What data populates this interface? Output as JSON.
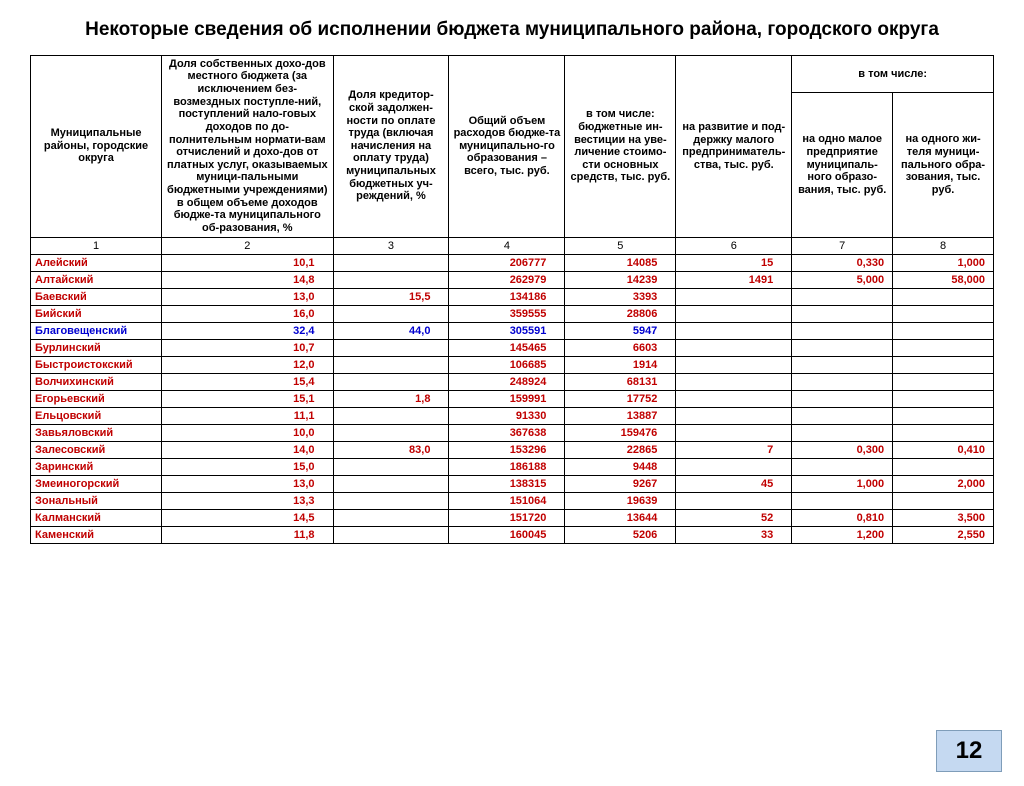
{
  "title": "Некоторые сведения об исполнении бюджета муниципального района, городского округа",
  "page_number": "12",
  "colors": {
    "red": "#c00000",
    "blue": "#0000d0",
    "badge_bg": "#c5d9f1",
    "badge_border": "#7f9db9",
    "border": "#000000",
    "background": "#ffffff"
  },
  "headers": {
    "group_label": "в том числе:",
    "col1": "Муниципальные районы, городские округа",
    "col2": "Доля собственных дохо-дов местного бюджета (за исключением без-возмездных поступле-ний, поступлений нало-говых доходов по до-полнительным нормати-вам отчислений и дохо-дов от платных услуг, оказываемых муници-пальными бюджетными учреждениями) в общем объеме доходов бюдже-та муниципального об-разования, %",
    "col3": "Доля кредитор-ской задолжен-ности по оплате труда (включая начисления на оплату труда) муниципальных бюджетных уч-реждений, %",
    "col4": "Общий объем расходов бюдже-та муниципально-го образования – всего, тыс. руб.",
    "col5": "в том числе: бюджетные ин-вестиции на уве-личение стоимо-сти основных средств, тыс. руб.",
    "col6": "на развитие и под-держку малого предприниматель-ства, тыс. руб.",
    "col7": "на одно малое предприятие муниципаль-ного образо-вания, тыс. руб.",
    "col8": "на одного жи-теля муници-пального обра-зования, тыс. руб."
  },
  "colnums": [
    "1",
    "2",
    "3",
    "4",
    "5",
    "6",
    "7",
    "8"
  ],
  "rows": [
    {
      "name": "Алейский",
      "style": "red",
      "v": [
        "10,1",
        "",
        "206777",
        "14085",
        "15",
        "0,330",
        "1,000"
      ]
    },
    {
      "name": "Алтайский",
      "style": "red",
      "v": [
        "14,8",
        "",
        "262979",
        "14239",
        "1491",
        "5,000",
        "58,000"
      ]
    },
    {
      "name": "Баевский",
      "style": "red",
      "v": [
        "13,0",
        "15,5",
        "134186",
        "3393",
        "",
        "",
        ""
      ]
    },
    {
      "name": "Бийский",
      "style": "red",
      "v": [
        "16,0",
        "",
        "359555",
        "28806",
        "",
        "",
        ""
      ]
    },
    {
      "name": "Благовещенский",
      "style": "blue",
      "v": [
        "32,4",
        "44,0",
        "305591",
        "5947",
        "",
        "",
        ""
      ]
    },
    {
      "name": "Бурлинский",
      "style": "red",
      "v": [
        "10,7",
        "",
        "145465",
        "6603",
        "",
        "",
        ""
      ]
    },
    {
      "name": "Быстроистокский",
      "style": "red",
      "v": [
        "12,0",
        "",
        "106685",
        "1914",
        "",
        "",
        ""
      ]
    },
    {
      "name": "Волчихинский",
      "style": "red",
      "v": [
        "15,4",
        "",
        "248924",
        "68131",
        "",
        "",
        ""
      ]
    },
    {
      "name": "Егорьевский",
      "style": "red",
      "v": [
        "15,1",
        "1,8",
        "159991",
        "17752",
        "",
        "",
        ""
      ]
    },
    {
      "name": "Ельцовский",
      "style": "red",
      "v": [
        "11,1",
        "",
        "91330",
        "13887",
        "",
        "",
        ""
      ]
    },
    {
      "name": "Завьяловский",
      "style": "red",
      "v": [
        "10,0",
        "",
        "367638",
        "159476",
        "",
        "",
        ""
      ]
    },
    {
      "name": "Залесовский",
      "style": "red",
      "v": [
        "14,0",
        "83,0",
        "153296",
        "22865",
        "7",
        "0,300",
        "0,410"
      ]
    },
    {
      "name": "Заринский",
      "style": "red",
      "v": [
        "15,0",
        "",
        "186188",
        "9448",
        "",
        "",
        ""
      ]
    },
    {
      "name": "Змеиногорский",
      "style": "red",
      "v": [
        "13,0",
        "",
        "138315",
        "9267",
        "45",
        "1,000",
        "2,000"
      ]
    },
    {
      "name": "Зональный",
      "style": "red",
      "v": [
        "13,3",
        "",
        "151064",
        "19639",
        "",
        "",
        ""
      ]
    },
    {
      "name": "Калманский",
      "style": "red",
      "v": [
        "14,5",
        "",
        "151720",
        "13644",
        "52",
        "0,810",
        "3,500"
      ]
    },
    {
      "name": "Каменский",
      "style": "red",
      "v": [
        "11,8",
        "",
        "160045",
        "5206",
        "33",
        "1,200",
        "2,550"
      ]
    }
  ]
}
